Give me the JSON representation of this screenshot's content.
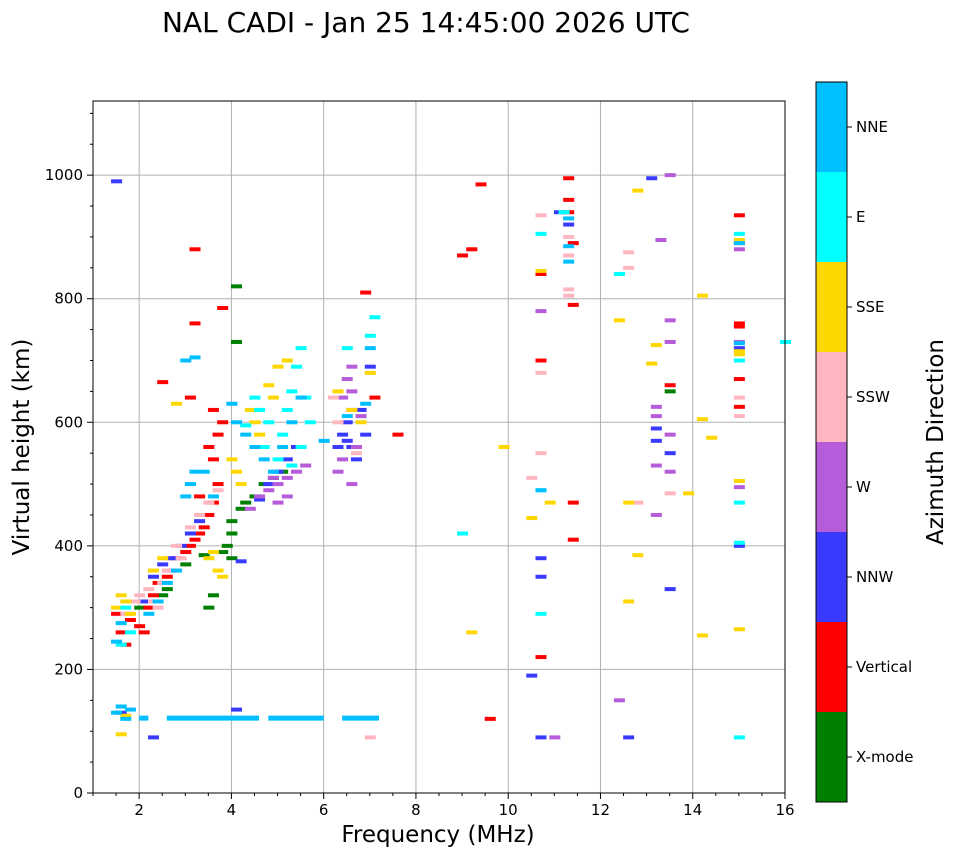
{
  "chart_data": {
    "type": "scatter",
    "subtype": "ionogram",
    "title": "NAL CADI - Jan 25 14:45:00 2026 UTC",
    "xlabel": "Frequency (MHz)",
    "ylabel": "Virtual height (km)",
    "xlim": [
      1,
      16
    ],
    "ylim": [
      0,
      1120
    ],
    "xticks": [
      2,
      4,
      6,
      8,
      10,
      12,
      14,
      16
    ],
    "yticks": [
      0,
      200,
      400,
      600,
      800,
      1000
    ],
    "grid": true,
    "colorbar": {
      "label": "Azimuth Direction",
      "categories": [
        {
          "name": "X-mode",
          "color": "#008000"
        },
        {
          "name": "Vertical",
          "color": "#ff0000"
        },
        {
          "name": "NNW",
          "color": "#3a3aff"
        },
        {
          "name": "W",
          "color": "#b65bd9"
        },
        {
          "name": "SSW",
          "color": "#ffb6c1"
        },
        {
          "name": "SSE",
          "color": "#ffd700"
        },
        {
          "name": "E",
          "color": "#00ffff"
        },
        {
          "name": "NNE",
          "color": "#00bfff"
        }
      ]
    },
    "series": [
      {
        "name": "X-mode",
        "points": [
          [
            2.0,
            300
          ],
          [
            2.5,
            320
          ],
          [
            2.6,
            330
          ],
          [
            3.0,
            370
          ],
          [
            3.4,
            385
          ],
          [
            3.5,
            300
          ],
          [
            3.6,
            320
          ],
          [
            3.9,
            400
          ],
          [
            4.0,
            420
          ],
          [
            4.0,
            440
          ],
          [
            4.1,
            820
          ],
          [
            4.1,
            730
          ],
          [
            4.2,
            460
          ],
          [
            4.3,
            470
          ],
          [
            4.5,
            480
          ],
          [
            4.7,
            500
          ],
          [
            4.9,
            510
          ],
          [
            5.1,
            520
          ],
          [
            4.0,
            380
          ],
          [
            3.8,
            390
          ],
          [
            13.5,
            650
          ]
        ]
      },
      {
        "name": "Vertical",
        "points": [
          [
            1.5,
            290
          ],
          [
            1.6,
            260
          ],
          [
            1.7,
            240
          ],
          [
            1.8,
            280
          ],
          [
            2.0,
            270
          ],
          [
            2.1,
            260
          ],
          [
            2.2,
            300
          ],
          [
            2.3,
            320
          ],
          [
            2.4,
            340
          ],
          [
            2.6,
            350
          ],
          [
            2.7,
            360
          ],
          [
            2.8,
            380
          ],
          [
            3.0,
            390
          ],
          [
            3.1,
            400
          ],
          [
            3.2,
            410
          ],
          [
            3.3,
            420
          ],
          [
            3.4,
            430
          ],
          [
            3.5,
            450
          ],
          [
            3.6,
            470
          ],
          [
            3.7,
            500
          ],
          [
            3.6,
            540
          ],
          [
            3.5,
            560
          ],
          [
            3.7,
            580
          ],
          [
            3.6,
            620
          ],
          [
            3.8,
            600
          ],
          [
            3.3,
            480
          ],
          [
            3.1,
            640
          ],
          [
            3.2,
            880
          ],
          [
            3.2,
            760
          ],
          [
            3.8,
            785
          ],
          [
            2.5,
            665
          ],
          [
            6.9,
            810
          ],
          [
            7.1,
            640
          ],
          [
            7.6,
            580
          ],
          [
            9.0,
            870
          ],
          [
            9.2,
            880
          ],
          [
            9.4,
            985
          ],
          [
            9.6,
            120
          ],
          [
            10.7,
            700
          ],
          [
            10.7,
            220
          ],
          [
            10.7,
            840
          ],
          [
            11.3,
            995
          ],
          [
            11.3,
            960
          ],
          [
            11.3,
            940
          ],
          [
            11.4,
            890
          ],
          [
            11.4,
            790
          ],
          [
            11.4,
            470
          ],
          [
            11.4,
            410
          ],
          [
            15.0,
            935
          ],
          [
            15.0,
            755
          ],
          [
            15.0,
            760
          ],
          [
            15.0,
            670
          ],
          [
            15.0,
            625
          ],
          [
            15.0,
            890
          ],
          [
            13.5,
            660
          ]
        ]
      },
      {
        "name": "NNW",
        "points": [
          [
            1.5,
            990
          ],
          [
            1.6,
            130
          ],
          [
            2.1,
            310
          ],
          [
            2.3,
            350
          ],
          [
            2.5,
            370
          ],
          [
            2.7,
            380
          ],
          [
            2.9,
            400
          ],
          [
            3.1,
            420
          ],
          [
            3.3,
            440
          ],
          [
            4.1,
            135
          ],
          [
            4.2,
            375
          ],
          [
            4.6,
            475
          ],
          [
            4.8,
            500
          ],
          [
            5.0,
            520
          ],
          [
            5.2,
            540
          ],
          [
            5.4,
            560
          ],
          [
            6.3,
            560
          ],
          [
            6.4,
            580
          ],
          [
            6.5,
            570
          ],
          [
            6.6,
            560
          ],
          [
            6.7,
            540
          ],
          [
            6.5,
            600
          ],
          [
            6.8,
            620
          ],
          [
            6.9,
            580
          ],
          [
            7.0,
            690
          ],
          [
            2.3,
            90
          ],
          [
            10.5,
            190
          ],
          [
            10.7,
            380
          ],
          [
            10.7,
            350
          ],
          [
            10.7,
            90
          ],
          [
            11.1,
            940
          ],
          [
            11.3,
            920
          ],
          [
            12.6,
            90
          ],
          [
            13.1,
            995
          ],
          [
            13.2,
            590
          ],
          [
            13.2,
            570
          ],
          [
            13.5,
            550
          ],
          [
            13.5,
            330
          ],
          [
            15.0,
            720
          ],
          [
            15.0,
            400
          ]
        ]
      },
      {
        "name": "W",
        "points": [
          [
            4.4,
            460
          ],
          [
            4.6,
            480
          ],
          [
            4.8,
            490
          ],
          [
            5.0,
            500
          ],
          [
            5.2,
            510
          ],
          [
            5.4,
            520
          ],
          [
            5.6,
            530
          ],
          [
            5.0,
            470
          ],
          [
            5.2,
            480
          ],
          [
            4.9,
            510
          ],
          [
            6.3,
            520
          ],
          [
            6.4,
            540
          ],
          [
            6.6,
            500
          ],
          [
            6.7,
            560
          ],
          [
            6.6,
            620
          ],
          [
            6.4,
            640
          ],
          [
            6.6,
            650
          ],
          [
            6.8,
            610
          ],
          [
            6.5,
            670
          ],
          [
            6.6,
            690
          ],
          [
            10.7,
            780
          ],
          [
            11.0,
            90
          ],
          [
            12.4,
            150
          ],
          [
            13.2,
            625
          ],
          [
            13.2,
            610
          ],
          [
            13.2,
            530
          ],
          [
            13.2,
            450
          ],
          [
            13.3,
            895
          ],
          [
            13.5,
            765
          ],
          [
            13.5,
            730
          ],
          [
            13.5,
            580
          ],
          [
            13.5,
            520
          ],
          [
            13.5,
            1000
          ],
          [
            15.0,
            730
          ],
          [
            15.0,
            880
          ],
          [
            15.0,
            495
          ]
        ]
      },
      {
        "name": "SSW",
        "points": [
          [
            1.7,
            290
          ],
          [
            1.9,
            310
          ],
          [
            2.0,
            320
          ],
          [
            2.2,
            330
          ],
          [
            2.3,
            310
          ],
          [
            2.4,
            300
          ],
          [
            2.5,
            340
          ],
          [
            2.6,
            360
          ],
          [
            2.8,
            400
          ],
          [
            2.9,
            380
          ],
          [
            3.1,
            430
          ],
          [
            3.3,
            450
          ],
          [
            3.5,
            470
          ],
          [
            3.7,
            490
          ],
          [
            6.2,
            640
          ],
          [
            6.3,
            600
          ],
          [
            6.7,
            550
          ],
          [
            7.0,
            90
          ],
          [
            10.5,
            510
          ],
          [
            10.7,
            550
          ],
          [
            10.7,
            680
          ],
          [
            10.7,
            935
          ],
          [
            11.3,
            900
          ],
          [
            11.3,
            870
          ],
          [
            11.3,
            815
          ],
          [
            11.3,
            805
          ],
          [
            12.6,
            875
          ],
          [
            12.6,
            850
          ],
          [
            12.8,
            470
          ],
          [
            13.5,
            485
          ],
          [
            15.0,
            640
          ],
          [
            15.0,
            610
          ]
        ]
      },
      {
        "name": "SSE",
        "points": [
          [
            1.5,
            300
          ],
          [
            1.6,
            320
          ],
          [
            1.7,
            310
          ],
          [
            1.8,
            290
          ],
          [
            1.6,
            95
          ],
          [
            1.7,
            125
          ],
          [
            2.3,
            360
          ],
          [
            2.5,
            380
          ],
          [
            2.8,
            630
          ],
          [
            3.5,
            380
          ],
          [
            3.6,
            390
          ],
          [
            3.7,
            360
          ],
          [
            3.8,
            350
          ],
          [
            4.0,
            540
          ],
          [
            4.1,
            520
          ],
          [
            4.2,
            500
          ],
          [
            4.4,
            620
          ],
          [
            4.5,
            600
          ],
          [
            4.6,
            580
          ],
          [
            4.8,
            660
          ],
          [
            4.9,
            640
          ],
          [
            5.0,
            690
          ],
          [
            5.2,
            700
          ],
          [
            6.3,
            650
          ],
          [
            6.6,
            620
          ],
          [
            6.8,
            600
          ],
          [
            7.0,
            680
          ],
          [
            9.0,
            420
          ],
          [
            9.2,
            260
          ],
          [
            9.9,
            560
          ],
          [
            10.5,
            445
          ],
          [
            10.7,
            845
          ],
          [
            10.9,
            470
          ],
          [
            12.4,
            765
          ],
          [
            12.6,
            470
          ],
          [
            12.6,
            310
          ],
          [
            12.8,
            975
          ],
          [
            12.8,
            385
          ],
          [
            13.1,
            695
          ],
          [
            13.2,
            725
          ],
          [
            13.9,
            485
          ],
          [
            14.2,
            805
          ],
          [
            14.2,
            605
          ],
          [
            14.2,
            255
          ],
          [
            14.4,
            575
          ],
          [
            15.0,
            710
          ],
          [
            15.0,
            715
          ],
          [
            15.0,
            505
          ],
          [
            15.0,
            895
          ],
          [
            15.0,
            265
          ]
        ]
      },
      {
        "name": "E",
        "points": [
          [
            1.6,
            240
          ],
          [
            1.7,
            300
          ],
          [
            1.8,
            260
          ],
          [
            4.3,
            595
          ],
          [
            4.5,
            640
          ],
          [
            4.6,
            620
          ],
          [
            4.7,
            560
          ],
          [
            4.8,
            600
          ],
          [
            5.0,
            540
          ],
          [
            5.1,
            580
          ],
          [
            5.2,
            620
          ],
          [
            5.3,
            650
          ],
          [
            5.4,
            690
          ],
          [
            5.5,
            720
          ],
          [
            5.6,
            640
          ],
          [
            5.7,
            600
          ],
          [
            5.5,
            560
          ],
          [
            5.3,
            530
          ],
          [
            6.5,
            720
          ],
          [
            7.0,
            740
          ],
          [
            7.1,
            770
          ],
          [
            9.0,
            420
          ],
          [
            10.7,
            905
          ],
          [
            10.7,
            490
          ],
          [
            10.7,
            290
          ],
          [
            11.2,
            940
          ],
          [
            12.4,
            840
          ],
          [
            15.0,
            905
          ],
          [
            15.0,
            700
          ],
          [
            15.0,
            470
          ],
          [
            15.0,
            405
          ],
          [
            15.0,
            90
          ],
          [
            16.0,
            730
          ]
        ]
      },
      {
        "name": "NNE",
        "points": [
          [
            1.5,
            130
          ],
          [
            1.6,
            140
          ],
          [
            1.7,
            120
          ],
          [
            1.8,
            135
          ],
          [
            1.5,
            245
          ],
          [
            1.6,
            275
          ],
          [
            2.2,
            290
          ],
          [
            2.4,
            310
          ],
          [
            2.6,
            340
          ],
          [
            2.8,
            360
          ],
          [
            3.0,
            480
          ],
          [
            3.1,
            500
          ],
          [
            3.2,
            520
          ],
          [
            3.0,
            700
          ],
          [
            3.2,
            705
          ],
          [
            3.4,
            520
          ],
          [
            3.6,
            480
          ],
          [
            4.0,
            630
          ],
          [
            4.1,
            600
          ],
          [
            4.3,
            580
          ],
          [
            4.5,
            560
          ],
          [
            4.7,
            540
          ],
          [
            4.9,
            520
          ],
          [
            5.1,
            560
          ],
          [
            5.3,
            600
          ],
          [
            5.5,
            640
          ],
          [
            6.0,
            570
          ],
          [
            6.5,
            610
          ],
          [
            6.9,
            630
          ],
          [
            7.0,
            720
          ],
          [
            10.7,
            490
          ],
          [
            11.3,
            930
          ],
          [
            11.3,
            885
          ],
          [
            11.3,
            860
          ],
          [
            15.0,
            890
          ],
          [
            15.0,
            728
          ]
        ]
      }
    ],
    "e_layer_trace": {
      "name": "NNE",
      "height_km": 122,
      "x_segments": [
        [
          2.0,
          2.2
        ],
        [
          2.6,
          4.6
        ],
        [
          4.8,
          6.0
        ],
        [
          6.4,
          7.2
        ]
      ]
    }
  }
}
